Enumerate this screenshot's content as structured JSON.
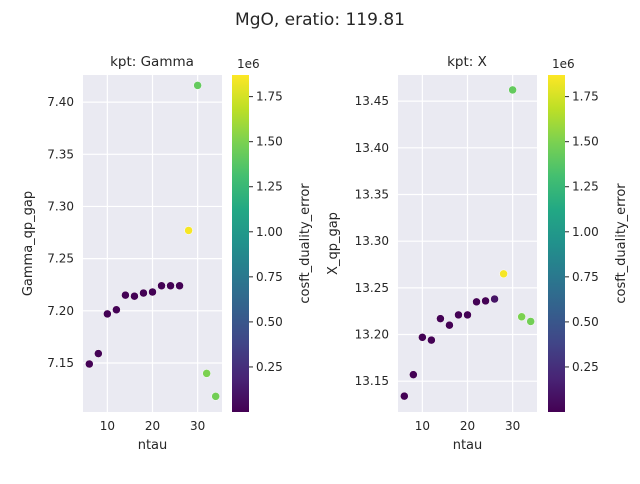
{
  "figure": {
    "suptitle": "MgO, eratio: 119.81"
  },
  "colorbar": {
    "label": "cosft_duality_error",
    "offset_text": "1e6",
    "ticks": [
      0.25,
      0.5,
      0.75,
      1.0,
      1.25,
      1.5,
      1.75
    ],
    "tick_labels": [
      "0.25",
      "0.50",
      "0.75",
      "1.00",
      "1.25",
      "1.50",
      "1.75"
    ],
    "range": [
      0.0,
      1.87
    ],
    "colormap": "viridis"
  },
  "chart_data": [
    {
      "type": "scatter",
      "title": "kpt: Gamma",
      "xlabel": "ntau",
      "ylabel": "Gamma_qp_gap",
      "xlim": [
        4.6,
        35.4
      ],
      "ylim": [
        7.103,
        7.426
      ],
      "xticks": [
        10,
        20,
        30
      ],
      "xtick_labels": [
        "10",
        "20",
        "30"
      ],
      "yticks": [
        7.15,
        7.2,
        7.25,
        7.3,
        7.35,
        7.4
      ],
      "ytick_labels": [
        "7.15",
        "7.20",
        "7.25",
        "7.30",
        "7.35",
        "7.40"
      ],
      "grid": true,
      "points": [
        {
          "x": 6,
          "y": 7.149,
          "c": 0.005
        },
        {
          "x": 8,
          "y": 7.159,
          "c": 0.005
        },
        {
          "x": 10,
          "y": 7.197,
          "c": 0.005
        },
        {
          "x": 12,
          "y": 7.201,
          "c": 0.005
        },
        {
          "x": 14,
          "y": 7.215,
          "c": 0.005
        },
        {
          "x": 16,
          "y": 7.214,
          "c": 0.005
        },
        {
          "x": 18,
          "y": 7.217,
          "c": 0.005
        },
        {
          "x": 20,
          "y": 7.218,
          "c": 0.005
        },
        {
          "x": 22,
          "y": 7.224,
          "c": 0.005
        },
        {
          "x": 24,
          "y": 7.224,
          "c": 0.005
        },
        {
          "x": 26,
          "y": 7.224,
          "c": 0.005
        },
        {
          "x": 28,
          "y": 7.277,
          "c": 1.85
        },
        {
          "x": 30,
          "y": 7.416,
          "c": 1.42
        },
        {
          "x": 32,
          "y": 7.14,
          "c": 1.5
        },
        {
          "x": 34,
          "y": 7.118,
          "c": 1.47
        }
      ]
    },
    {
      "type": "scatter",
      "title": "kpt: X",
      "xlabel": "ntau",
      "ylabel": "X_qp_gap",
      "xlim": [
        4.6,
        35.4
      ],
      "ylim": [
        13.117,
        13.478
      ],
      "xticks": [
        10,
        20,
        30
      ],
      "xtick_labels": [
        "10",
        "20",
        "30"
      ],
      "yticks": [
        13.15,
        13.2,
        13.25,
        13.3,
        13.35,
        13.4,
        13.45
      ],
      "ytick_labels": [
        "13.15",
        "13.20",
        "13.25",
        "13.30",
        "13.35",
        "13.40",
        "13.45"
      ],
      "grid": true,
      "points": [
        {
          "x": 6,
          "y": 13.134,
          "c": 0.005
        },
        {
          "x": 8,
          "y": 13.157,
          "c": 0.005
        },
        {
          "x": 10,
          "y": 13.197,
          "c": 0.005
        },
        {
          "x": 12,
          "y": 13.194,
          "c": 0.005
        },
        {
          "x": 14,
          "y": 13.217,
          "c": 0.005
        },
        {
          "x": 16,
          "y": 13.21,
          "c": 0.005
        },
        {
          "x": 18,
          "y": 13.221,
          "c": 0.005
        },
        {
          "x": 20,
          "y": 13.221,
          "c": 0.005
        },
        {
          "x": 22,
          "y": 13.235,
          "c": 0.005
        },
        {
          "x": 24,
          "y": 13.236,
          "c": 0.005
        },
        {
          "x": 26,
          "y": 13.238,
          "c": 0.1
        },
        {
          "x": 28,
          "y": 13.265,
          "c": 1.85
        },
        {
          "x": 30,
          "y": 13.462,
          "c": 1.42
        },
        {
          "x": 32,
          "y": 13.219,
          "c": 1.5
        },
        {
          "x": 34,
          "y": 13.214,
          "c": 1.47
        }
      ]
    }
  ]
}
